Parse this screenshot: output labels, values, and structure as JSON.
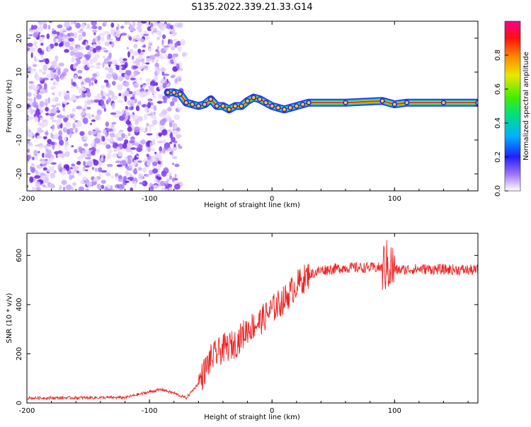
{
  "title": "S135.2022.339.21.33.G14",
  "chart_data": [
    {
      "type": "heatmap",
      "panel": "spectrogram",
      "xlabel": "Height of straight line (km)",
      "ylabel": "Frequency (Hz)",
      "xlim": [
        -200,
        168
      ],
      "ylim": [
        -25,
        25
      ],
      "x_ticks": [
        "-200",
        "-100",
        "0",
        "100"
      ],
      "y_ticks": [
        "-20",
        "-10",
        "0",
        "10",
        "20"
      ],
      "colorbar": {
        "label": "Normalized spectral amplitude",
        "range": [
          0,
          1
        ],
        "ticks": [
          "0.0",
          "0.2",
          "0.4",
          "0.6",
          "0.8"
        ]
      },
      "noise_region": {
        "x": [
          -200,
          -70
        ],
        "y": [
          -25,
          25
        ]
      },
      "ridge": [
        [
          -85,
          4
        ],
        [
          -80,
          4
        ],
        [
          -75,
          3.5
        ],
        [
          -70,
          1
        ],
        [
          -65,
          0.5
        ],
        [
          -60,
          0
        ],
        [
          -55,
          0.5
        ],
        [
          -50,
          2
        ],
        [
          -45,
          0
        ],
        [
          -40,
          0
        ],
        [
          -35,
          -1
        ],
        [
          -30,
          0
        ],
        [
          -25,
          0
        ],
        [
          -20,
          1.5
        ],
        [
          -15,
          2.5
        ],
        [
          -10,
          2
        ],
        [
          -5,
          1
        ],
        [
          0,
          0
        ],
        [
          5,
          -0.5
        ],
        [
          10,
          -1
        ],
        [
          15,
          -0.5
        ],
        [
          20,
          0
        ],
        [
          25,
          0.5
        ],
        [
          30,
          1
        ],
        [
          60,
          1
        ],
        [
          90,
          1.5
        ],
        [
          100,
          0.5
        ],
        [
          110,
          1
        ],
        [
          140,
          1
        ],
        [
          168,
          1
        ]
      ]
    },
    {
      "type": "line",
      "panel": "snr",
      "xlabel": "Height of straight line (km)",
      "ylabel": "SNR (10 * v/v)",
      "xlim": [
        -200,
        168
      ],
      "ylim": [
        0,
        690
      ],
      "x_ticks": [
        "-200",
        "-100",
        "0",
        "100"
      ],
      "y_ticks": [
        "0",
        "200",
        "400",
        "600"
      ],
      "color": "#ee2222",
      "trend": [
        [
          -200,
          20
        ],
        [
          -120,
          22
        ],
        [
          -100,
          45
        ],
        [
          -90,
          55
        ],
        [
          -80,
          40
        ],
        [
          -70,
          20
        ],
        [
          -60,
          80
        ],
        [
          -50,
          180
        ],
        [
          -40,
          220
        ],
        [
          -30,
          240
        ],
        [
          -20,
          300
        ],
        [
          -10,
          330
        ],
        [
          0,
          380
        ],
        [
          10,
          420
        ],
        [
          20,
          480
        ],
        [
          30,
          520
        ],
        [
          40,
          540
        ],
        [
          60,
          550
        ],
        [
          90,
          550
        ],
        [
          95,
          560
        ],
        [
          100,
          540
        ],
        [
          120,
          545
        ],
        [
          168,
          540
        ]
      ]
    }
  ]
}
